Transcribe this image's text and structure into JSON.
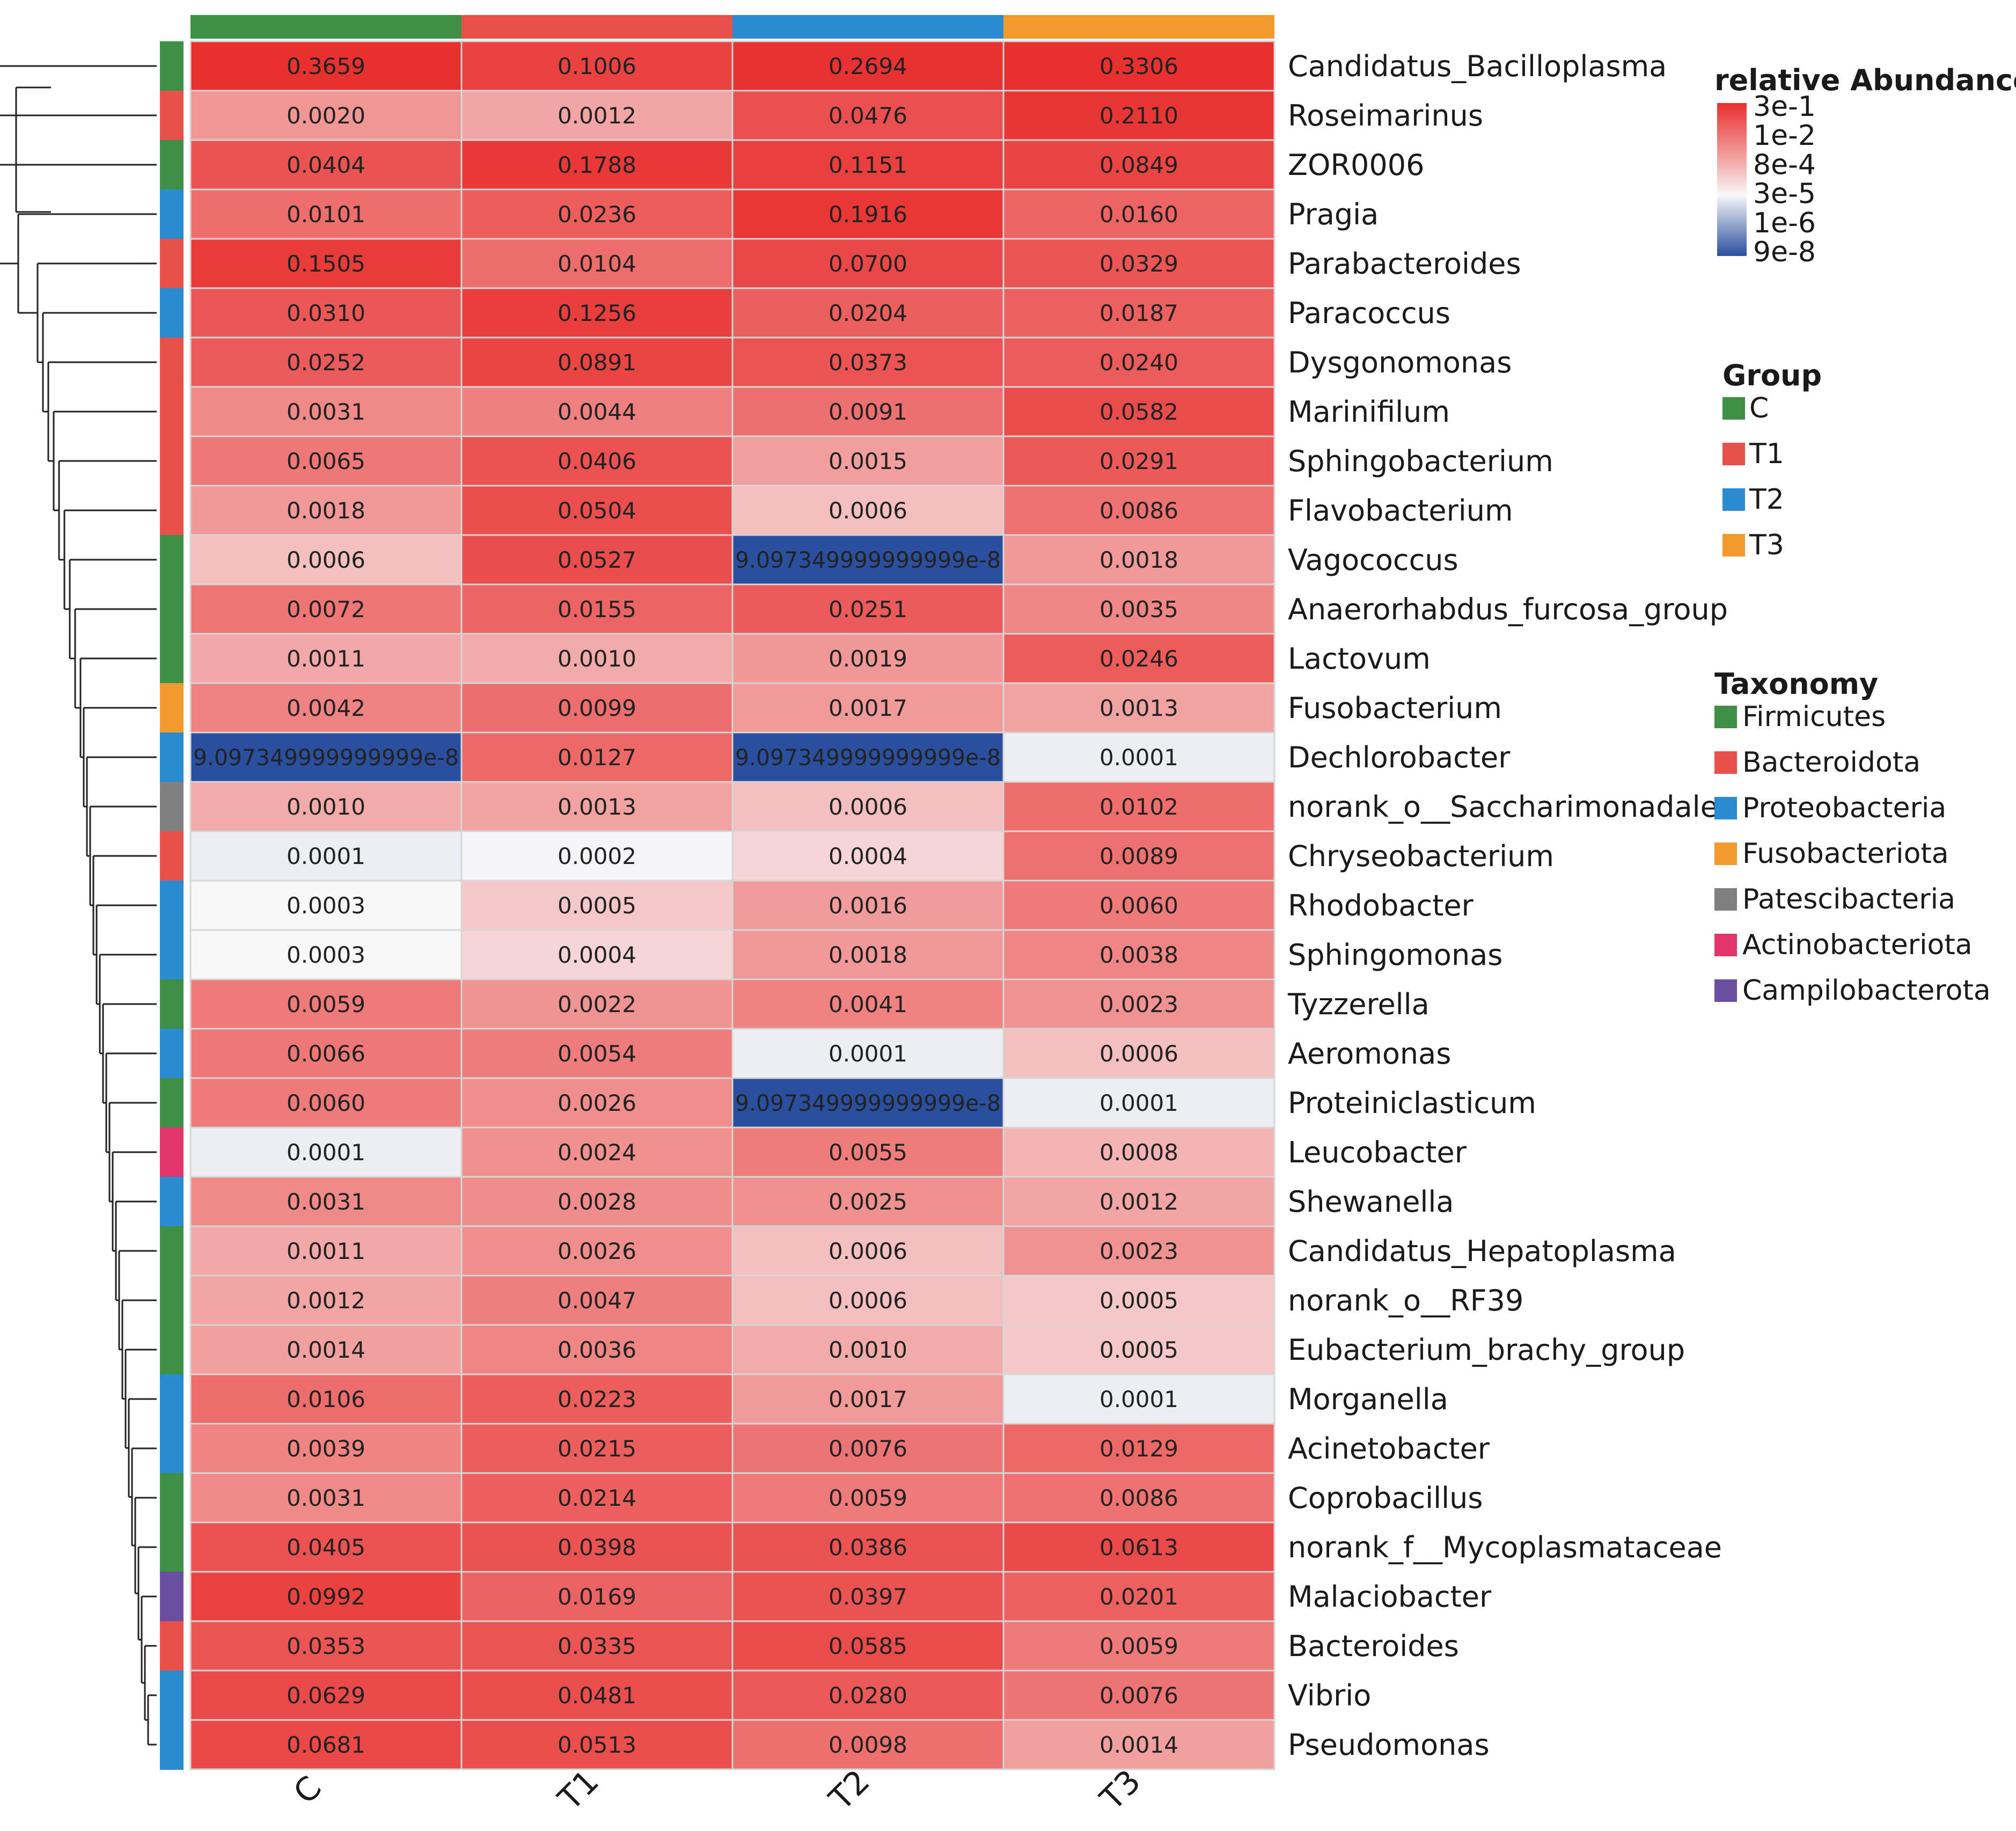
{
  "chart_data": {
    "type": "heatmap",
    "columns": [
      "C",
      "T1",
      "T2",
      "T3"
    ],
    "column_groups": [
      "C",
      "T1",
      "T2",
      "T3"
    ],
    "rows": [
      {
        "name": "Candidatus_Bacilloplasma",
        "taxonomy": "Firmicutes",
        "values": [
          0.3659,
          0.1006,
          0.2694,
          0.3306
        ],
        "labels": [
          "0.3659",
          "0.1006",
          "0.2694",
          "0.3306"
        ]
      },
      {
        "name": "Roseimarinus",
        "taxonomy": "Bacteroidota",
        "values": [
          0.002,
          0.0012,
          0.0476,
          0.211
        ],
        "labels": [
          "0.0020",
          "0.0012",
          "0.0476",
          "0.2110"
        ]
      },
      {
        "name": "ZOR0006",
        "taxonomy": "Firmicutes",
        "values": [
          0.0404,
          0.1788,
          0.1151,
          0.0849
        ],
        "labels": [
          "0.0404",
          "0.1788",
          "0.1151",
          "0.0849"
        ]
      },
      {
        "name": "Pragia",
        "taxonomy": "Proteobacteria",
        "values": [
          0.0101,
          0.0236,
          0.1916,
          0.016
        ],
        "labels": [
          "0.0101",
          "0.0236",
          "0.1916",
          "0.0160"
        ]
      },
      {
        "name": "Parabacteroides",
        "taxonomy": "Bacteroidota",
        "values": [
          0.1505,
          0.0104,
          0.07,
          0.0329
        ],
        "labels": [
          "0.1505",
          "0.0104",
          "0.0700",
          "0.0329"
        ]
      },
      {
        "name": "Paracoccus",
        "taxonomy": "Proteobacteria",
        "values": [
          0.031,
          0.1256,
          0.0204,
          0.0187
        ],
        "labels": [
          "0.0310",
          "0.1256",
          "0.0204",
          "0.0187"
        ]
      },
      {
        "name": "Dysgonomonas",
        "taxonomy": "Bacteroidota",
        "values": [
          0.0252,
          0.0891,
          0.0373,
          0.024
        ],
        "labels": [
          "0.0252",
          "0.0891",
          "0.0373",
          "0.0240"
        ]
      },
      {
        "name": "Marinifilum",
        "taxonomy": "Bacteroidota",
        "values": [
          0.0031,
          0.0044,
          0.0091,
          0.0582
        ],
        "labels": [
          "0.0031",
          "0.0044",
          "0.0091",
          "0.0582"
        ]
      },
      {
        "name": "Sphingobacterium",
        "taxonomy": "Bacteroidota",
        "values": [
          0.0065,
          0.0406,
          0.0015,
          0.0291
        ],
        "labels": [
          "0.0065",
          "0.0406",
          "0.0015",
          "0.0291"
        ]
      },
      {
        "name": "Flavobacterium",
        "taxonomy": "Bacteroidota",
        "values": [
          0.0018,
          0.0504,
          0.0006,
          0.0086
        ],
        "labels": [
          "0.0018",
          "0.0504",
          "0.0006",
          "0.0086"
        ]
      },
      {
        "name": "Vagococcus",
        "taxonomy": "Firmicutes",
        "values": [
          0.0006,
          0.0527,
          9.097349999999999e-08,
          0.0018
        ],
        "labels": [
          "0.0006",
          "0.0527",
          "9.097349999999999e-8",
          "0.0018"
        ]
      },
      {
        "name": "Anaerorhabdus_furcosa_group",
        "taxonomy": "Firmicutes",
        "values": [
          0.0072,
          0.0155,
          0.0251,
          0.0035
        ],
        "labels": [
          "0.0072",
          "0.0155",
          "0.0251",
          "0.0035"
        ]
      },
      {
        "name": "Lactovum",
        "taxonomy": "Firmicutes",
        "values": [
          0.0011,
          0.001,
          0.0019,
          0.0246
        ],
        "labels": [
          "0.0011",
          "0.0010",
          "0.0019",
          "0.0246"
        ]
      },
      {
        "name": "Fusobacterium",
        "taxonomy": "Fusobacteriota",
        "values": [
          0.0042,
          0.0099,
          0.0017,
          0.0013
        ],
        "labels": [
          "0.0042",
          "0.0099",
          "0.0017",
          "0.0013"
        ]
      },
      {
        "name": "Dechlorobacter",
        "taxonomy": "Proteobacteria",
        "values": [
          9.097349999999999e-08,
          0.0127,
          9.097349999999999e-08,
          0.0001
        ],
        "labels": [
          "9.097349999999999e-8",
          "0.0127",
          "9.097349999999999e-8",
          "0.0001"
        ]
      },
      {
        "name": "norank_o__Saccharimonadales",
        "taxonomy": "Patescibacteria",
        "values": [
          0.001,
          0.0013,
          0.0006,
          0.0102
        ],
        "labels": [
          "0.0010",
          "0.0013",
          "0.0006",
          "0.0102"
        ]
      },
      {
        "name": "Chryseobacterium",
        "taxonomy": "Bacteroidota",
        "values": [
          0.0001,
          0.0002,
          0.0004,
          0.0089
        ],
        "labels": [
          "0.0001",
          "0.0002",
          "0.0004",
          "0.0089"
        ]
      },
      {
        "name": "Rhodobacter",
        "taxonomy": "Proteobacteria",
        "values": [
          0.0003,
          0.0005,
          0.0016,
          0.006
        ],
        "labels": [
          "0.0003",
          "0.0005",
          "0.0016",
          "0.0060"
        ]
      },
      {
        "name": "Sphingomonas",
        "taxonomy": "Proteobacteria",
        "values": [
          0.0003,
          0.0004,
          0.0018,
          0.0038
        ],
        "labels": [
          "0.0003",
          "0.0004",
          "0.0018",
          "0.0038"
        ]
      },
      {
        "name": "Tyzzerella",
        "taxonomy": "Firmicutes",
        "values": [
          0.0059,
          0.0022,
          0.0041,
          0.0023
        ],
        "labels": [
          "0.0059",
          "0.0022",
          "0.0041",
          "0.0023"
        ]
      },
      {
        "name": "Aeromonas",
        "taxonomy": "Proteobacteria",
        "values": [
          0.0066,
          0.0054,
          0.0001,
          0.0006
        ],
        "labels": [
          "0.0066",
          "0.0054",
          "0.0001",
          "0.0006"
        ]
      },
      {
        "name": "Proteiniclasticum",
        "taxonomy": "Firmicutes",
        "values": [
          0.006,
          0.0026,
          9.097349999999999e-08,
          0.0001
        ],
        "labels": [
          "0.0060",
          "0.0026",
          "9.097349999999999e-8",
          "0.0001"
        ]
      },
      {
        "name": "Leucobacter",
        "taxonomy": "Actinobacteriota",
        "values": [
          0.0001,
          0.0024,
          0.0055,
          0.0008
        ],
        "labels": [
          "0.0001",
          "0.0024",
          "0.0055",
          "0.0008"
        ]
      },
      {
        "name": "Shewanella",
        "taxonomy": "Proteobacteria",
        "values": [
          0.0031,
          0.0028,
          0.0025,
          0.0012
        ],
        "labels": [
          "0.0031",
          "0.0028",
          "0.0025",
          "0.0012"
        ]
      },
      {
        "name": "Candidatus_Hepatoplasma",
        "taxonomy": "Firmicutes",
        "values": [
          0.0011,
          0.0026,
          0.0006,
          0.0023
        ],
        "labels": [
          "0.0011",
          "0.0026",
          "0.0006",
          "0.0023"
        ]
      },
      {
        "name": "norank_o__RF39",
        "taxonomy": "Firmicutes",
        "values": [
          0.0012,
          0.0047,
          0.0006,
          0.0005
        ],
        "labels": [
          "0.0012",
          "0.0047",
          "0.0006",
          "0.0005"
        ]
      },
      {
        "name": "Eubacterium_brachy_group",
        "taxonomy": "Firmicutes",
        "values": [
          0.0014,
          0.0036,
          0.001,
          0.0005
        ],
        "labels": [
          "0.0014",
          "0.0036",
          "0.0010",
          "0.0005"
        ]
      },
      {
        "name": "Morganella",
        "taxonomy": "Proteobacteria",
        "values": [
          0.0106,
          0.0223,
          0.0017,
          0.0001
        ],
        "labels": [
          "0.0106",
          "0.0223",
          "0.0017",
          "0.0001"
        ]
      },
      {
        "name": "Acinetobacter",
        "taxonomy": "Proteobacteria",
        "values": [
          0.0039,
          0.0215,
          0.0076,
          0.0129
        ],
        "labels": [
          "0.0039",
          "0.0215",
          "0.0076",
          "0.0129"
        ]
      },
      {
        "name": "Coprobacillus",
        "taxonomy": "Firmicutes",
        "values": [
          0.0031,
          0.0214,
          0.0059,
          0.0086
        ],
        "labels": [
          "0.0031",
          "0.0214",
          "0.0059",
          "0.0086"
        ]
      },
      {
        "name": "norank_f__Mycoplasmataceae",
        "taxonomy": "Firmicutes",
        "values": [
          0.0405,
          0.0398,
          0.0386,
          0.0613
        ],
        "labels": [
          "0.0405",
          "0.0398",
          "0.0386",
          "0.0613"
        ]
      },
      {
        "name": "Malaciobacter",
        "taxonomy": "Campilobacterota",
        "values": [
          0.0992,
          0.0169,
          0.0397,
          0.0201
        ],
        "labels": [
          "0.0992",
          "0.0169",
          "0.0397",
          "0.0201"
        ]
      },
      {
        "name": "Bacteroides",
        "taxonomy": "Bacteroidota",
        "values": [
          0.0353,
          0.0335,
          0.0585,
          0.0059
        ],
        "labels": [
          "0.0353",
          "0.0335",
          "0.0585",
          "0.0059"
        ]
      },
      {
        "name": "Vibrio",
        "taxonomy": "Proteobacteria",
        "values": [
          0.0629,
          0.0481,
          0.028,
          0.0076
        ],
        "labels": [
          "0.0629",
          "0.0481",
          "0.0280",
          "0.0076"
        ]
      },
      {
        "name": "Pseudomonas",
        "taxonomy": "Proteobacteria",
        "values": [
          0.0681,
          0.0513,
          0.0098,
          0.0014
        ],
        "labels": [
          "0.0681",
          "0.0513",
          "0.0098",
          "0.0014"
        ]
      }
    ],
    "color_scale": {
      "scale": "log",
      "ticks": [
        "3e-1",
        "1e-2",
        "8e-4",
        "3e-5",
        "1e-6",
        "9e-8"
      ],
      "colors": [
        "#e8302f",
        "#f8f8f8",
        "#2b4f9f"
      ]
    },
    "legend_abundance_title": "relative Abundance",
    "legend_group": {
      "title": "Group",
      "items": [
        {
          "label": "C",
          "color": "#3f8f46"
        },
        {
          "label": "T1",
          "color": "#e8514a"
        },
        {
          "label": "T2",
          "color": "#2a8bd0"
        },
        {
          "label": "T3",
          "color": "#f39a2f"
        }
      ]
    },
    "legend_taxonomy": {
      "title": "Taxonomy",
      "items": [
        {
          "label": "Firmicutes",
          "color": "#3f8f46"
        },
        {
          "label": "Bacteroidota",
          "color": "#e8514a"
        },
        {
          "label": "Proteobacteria",
          "color": "#2a8bd0"
        },
        {
          "label": "Fusobacteriota",
          "color": "#f39a2f"
        },
        {
          "label": "Patescibacteria",
          "color": "#808080"
        },
        {
          "label": "Actinobacteriota",
          "color": "#e2356b"
        },
        {
          "label": "Campilobacterota",
          "color": "#6a4fa0"
        }
      ]
    }
  }
}
